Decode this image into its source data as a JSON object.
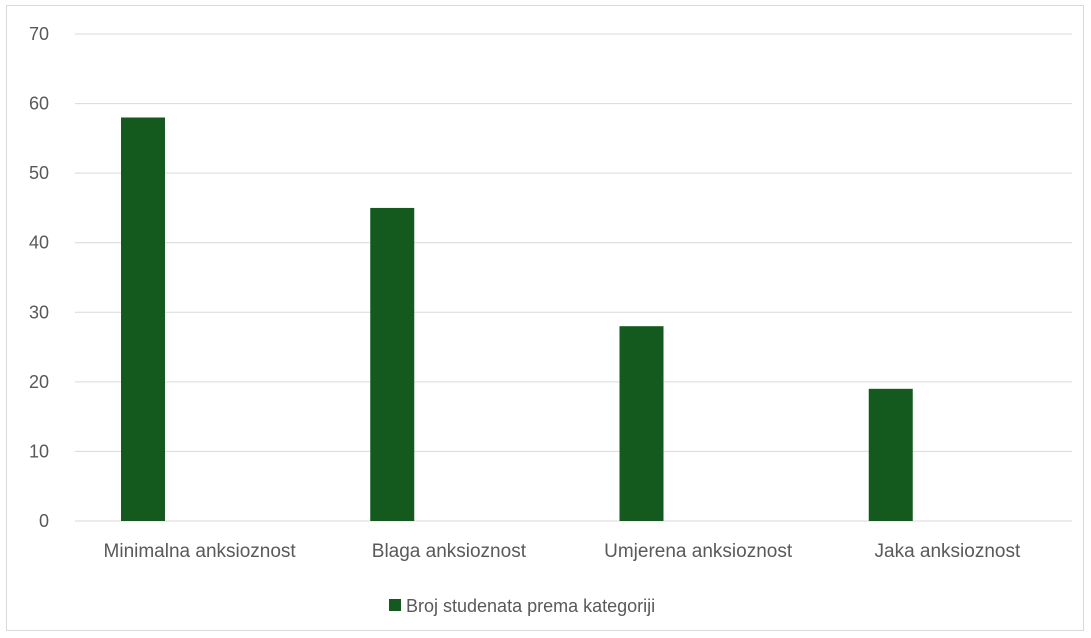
{
  "chart_data": {
    "type": "bar",
    "title": "",
    "xlabel": "",
    "ylabel": "",
    "categories": [
      "Minimalna anksioznost",
      "Blaga anksioznost",
      "Umjerena anksioznost",
      "Jaka anksioznost"
    ],
    "series": [
      {
        "name": "Broj studenata prema kategoriji",
        "values": [
          58,
          45,
          28,
          19
        ],
        "color": "#145a1e"
      }
    ],
    "ylim": [
      0,
      70
    ],
    "yticks": [
      0,
      10,
      20,
      30,
      40,
      50,
      60,
      70
    ],
    "yticks_labels": [
      "0",
      "10",
      "20",
      "30",
      "40",
      "50",
      "60",
      "70"
    ],
    "grid": "horizontal",
    "legend": {
      "position": "bottom"
    },
    "colors": {
      "bar": "#145a1e",
      "grid": "#d9d9d9",
      "text": "#595959"
    }
  }
}
